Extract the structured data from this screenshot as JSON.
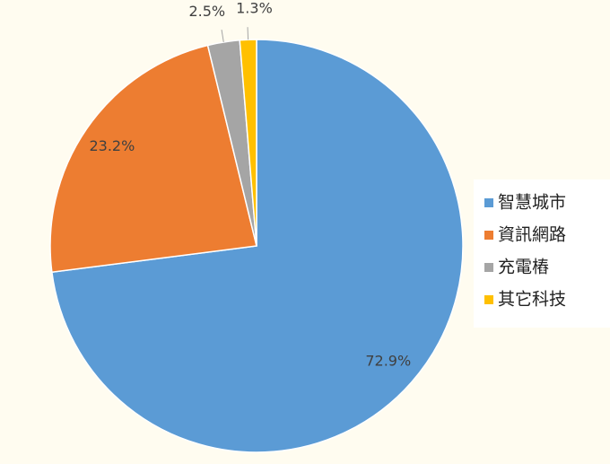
{
  "chart_data": {
    "type": "pie",
    "categories": [
      "智慧城市",
      "資訊網路",
      "充電樁",
      "其它科技"
    ],
    "values": [
      72.9,
      23.2,
      2.5,
      1.3
    ],
    "value_labels": [
      "72.9%",
      "23.2%",
      "2.5%",
      "1.3%"
    ],
    "colors": [
      "#5b9bd5",
      "#ed7d31",
      "#a5a5a5",
      "#ffc000"
    ],
    "legend": "right"
  }
}
